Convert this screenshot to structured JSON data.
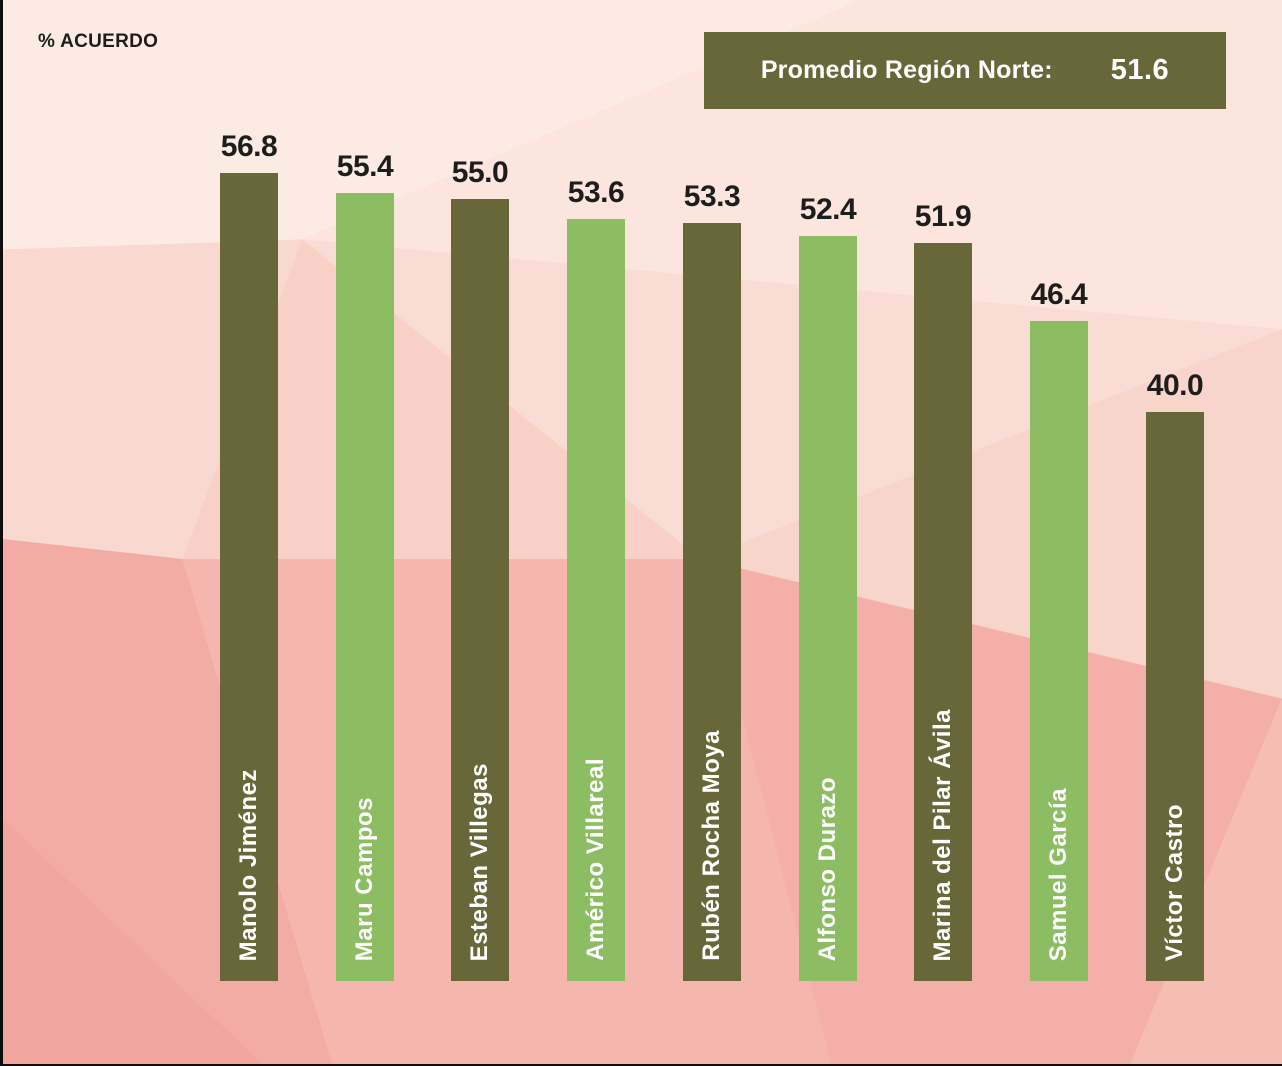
{
  "page": {
    "y_axis_label": "% ACUERDO"
  },
  "average_box": {
    "label": "Promedio Región Norte:",
    "value": "51.6"
  },
  "colors": {
    "bar_dark": "#67673a",
    "bar_light": "#8cbd62",
    "value_label_text": "#1d1d1b",
    "bar_name_text": "#ffffff",
    "average_box_bg": "#67673a",
    "background_base": "#f8d3ca"
  },
  "chart_data": {
    "type": "bar",
    "title": "",
    "xlabel": "",
    "ylabel": "% ACUERDO",
    "ylim": [
      0,
      69
    ],
    "grid": false,
    "legend": "none",
    "annotation": {
      "label": "Promedio Región Norte:",
      "value": 51.6
    },
    "categories": [
      "Manolo Jiménez",
      "Maru Campos",
      "Esteban Villegas",
      "Américo Villareal",
      "Rubén Rocha Moya",
      "Alfonso Durazo",
      "Marina del Pilar Ávila",
      "Samuel García",
      "Víctor Castro"
    ],
    "values": [
      56.8,
      55.4,
      55.0,
      53.6,
      53.3,
      52.4,
      51.9,
      46.4,
      40.0
    ],
    "bar_colors": [
      "dark",
      "light",
      "dark",
      "light",
      "dark",
      "light",
      "dark",
      "light",
      "dark"
    ]
  }
}
